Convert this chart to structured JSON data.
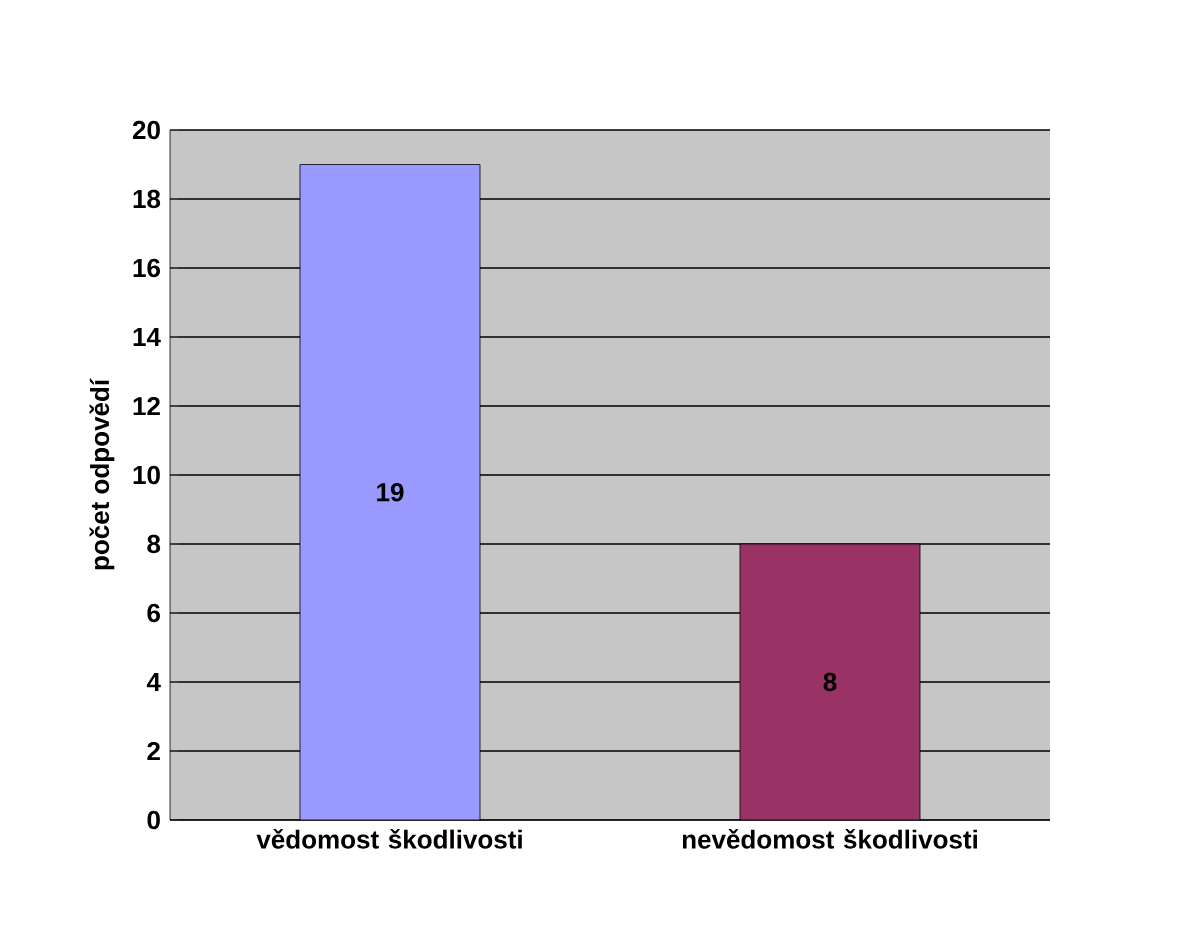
{
  "chart_data": {
    "type": "bar",
    "ylabel": "počet odpovědí",
    "categories": [
      "vědomost škodlivosti",
      "nevědomost škodlivosti"
    ],
    "values": [
      19,
      8
    ],
    "colors": [
      "#9999ff",
      "#993366"
    ],
    "ylim": [
      0,
      20
    ],
    "yticks": [
      0,
      2,
      4,
      6,
      8,
      10,
      12,
      14,
      16,
      18,
      20
    ],
    "grid": "y",
    "data_labels": true
  }
}
